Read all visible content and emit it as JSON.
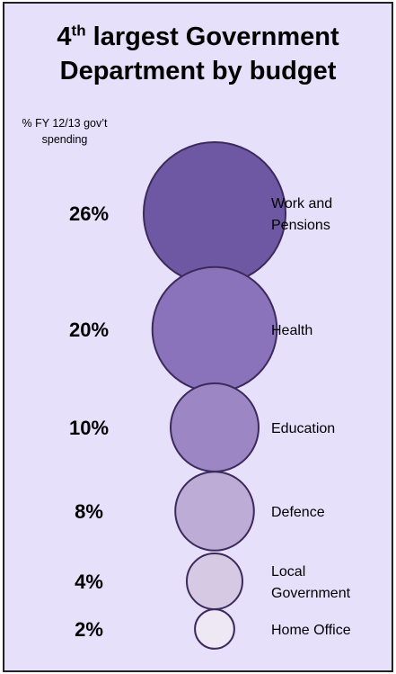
{
  "chart_data": {
    "type": "bubble",
    "title": {
      "prefix": "4",
      "superscript": "th",
      "main": " largest Government",
      "line2": "Department by budget"
    },
    "subtitle": [
      "% FY 12/13 gov’t",
      "spending"
    ],
    "categories": [
      "Work and Pensions",
      "Health",
      "Education",
      "Defence",
      "Local Government",
      "Home Office"
    ],
    "values": [
      26,
      20,
      10,
      8,
      4,
      2
    ],
    "value_labels": [
      "26%",
      "20%",
      "10%",
      "8%",
      "4%",
      "2%"
    ],
    "category_label_lines": [
      [
        "Work and",
        "Pensions"
      ],
      [
        "Health"
      ],
      [
        "Education"
      ],
      [
        "Defence"
      ],
      [
        "Local",
        "Government"
      ],
      [
        "Home Office"
      ]
    ],
    "colors": [
      "#6f58a3",
      "#8a73ba",
      "#9c87c4",
      "#bdacd6",
      "#d5c9e3",
      "#ede8f3"
    ],
    "stroke_color": "#3c2a5c",
    "background": "#e6e0fb"
  }
}
